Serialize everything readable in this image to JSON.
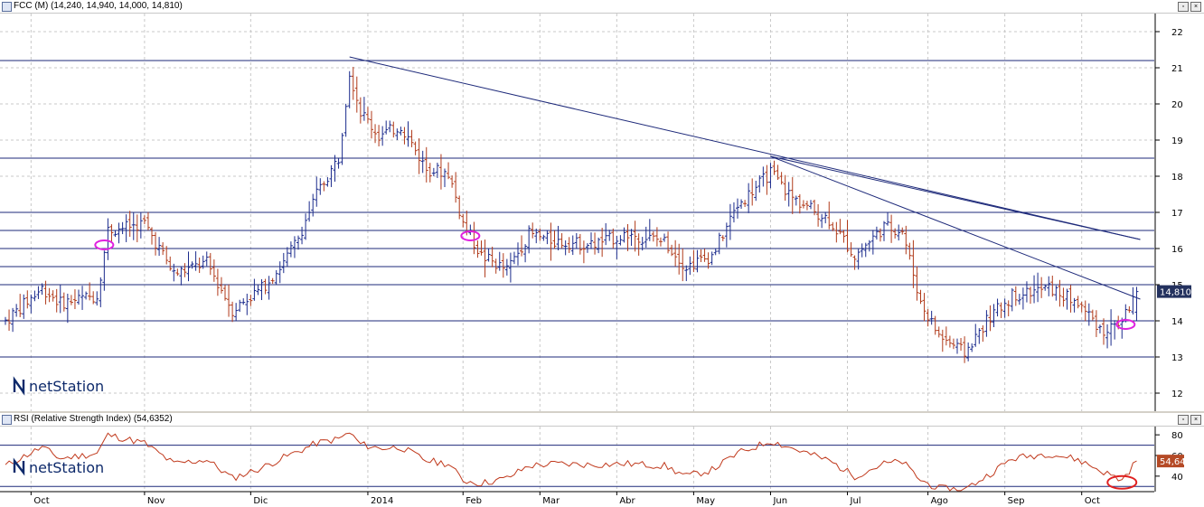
{
  "main_panel": {
    "title": "FCC (M) (14,240, 14,940, 14,000, 14,810)",
    "logo": "netStation",
    "last_value_label": "14,810"
  },
  "rsi_panel": {
    "title": "RSI (Relative Strength Index) (54,6352)",
    "logo": "netStation",
    "last_value_label": "54,64"
  },
  "window_buttons": {
    "restore": "▫",
    "close": "×"
  },
  "colors": {
    "up_bar": "#1a2a8c",
    "down_bar": "#b03a1a",
    "trendline": "#1e2a7a",
    "grid_dash": "#c8c8c8",
    "rsi_line": "#c0391c",
    "highlight_magenta": "#e020e0",
    "highlight_red": "#e02020",
    "value_badge_main": "#23315e",
    "value_badge_rsi": "#b54a26"
  },
  "chart_data": [
    {
      "type": "ohlc",
      "title": "FCC (M) (14,240, 14,940, 14,000, 14,810)",
      "ylim": [
        11.5,
        22.5
      ],
      "yticks": [
        12,
        13,
        14,
        15,
        16,
        17,
        18,
        19,
        20,
        21,
        22
      ],
      "x_months": [
        "Oct",
        "Nov",
        "Dic",
        "2014",
        "Feb",
        "Mar",
        "Abr",
        "May",
        "Jun",
        "Jul",
        "Ago",
        "Sep",
        "Oct"
      ],
      "month_start_index": [
        7,
        38,
        67,
        99,
        125,
        146,
        167,
        188,
        209,
        230,
        252,
        273,
        294
      ],
      "n_bars": 310,
      "waypoints": [
        [
          0,
          14.0
        ],
        [
          10,
          14.9
        ],
        [
          15,
          14.5
        ],
        [
          25,
          14.7
        ],
        [
          28,
          16.5
        ],
        [
          38,
          16.7
        ],
        [
          46,
          15.3
        ],
        [
          55,
          15.6
        ],
        [
          62,
          14.3
        ],
        [
          70,
          14.9
        ],
        [
          76,
          15.6
        ],
        [
          80,
          16.3
        ],
        [
          85,
          17.5
        ],
        [
          91,
          18.5
        ],
        [
          94,
          20.9
        ],
        [
          97,
          19.8
        ],
        [
          102,
          19.1
        ],
        [
          108,
          19.4
        ],
        [
          115,
          18.2
        ],
        [
          121,
          18.1
        ],
        [
          125,
          16.7
        ],
        [
          130,
          15.8
        ],
        [
          137,
          15.4
        ],
        [
          143,
          16.4
        ],
        [
          150,
          16.2
        ],
        [
          160,
          16.1
        ],
        [
          170,
          16.4
        ],
        [
          180,
          16.2
        ],
        [
          186,
          15.5
        ],
        [
          193,
          15.8
        ],
        [
          200,
          17.2
        ],
        [
          209,
          18.1
        ],
        [
          215,
          17.4
        ],
        [
          225,
          16.8
        ],
        [
          232,
          15.8
        ],
        [
          240,
          16.6
        ],
        [
          245,
          16.5
        ],
        [
          250,
          14.5
        ],
        [
          255,
          13.6
        ],
        [
          262,
          13.1
        ],
        [
          268,
          14.0
        ],
        [
          275,
          14.7
        ],
        [
          285,
          14.9
        ],
        [
          293,
          14.5
        ],
        [
          300,
          13.7
        ],
        [
          305,
          14.0
        ],
        [
          309,
          14.81
        ]
      ],
      "last": {
        "open": 14.24,
        "high": 14.94,
        "low": 14.0,
        "close": 14.81
      },
      "horizontal_lines": [
        13.0,
        14.0,
        15.0,
        15.5,
        16.0,
        16.5,
        17.0,
        18.5,
        21.2
      ],
      "trendlines": [
        {
          "from": [
            94,
            21.3
          ],
          "to": [
            310,
            16.25
          ]
        },
        {
          "from": [
            209,
            18.55
          ],
          "to": [
            310,
            16.25
          ]
        },
        {
          "from": [
            209,
            18.55
          ],
          "to": [
            310,
            14.6
          ]
        }
      ],
      "highlights": [
        {
          "index": 27,
          "value": 16.1,
          "color": "magenta"
        },
        {
          "index": 127,
          "value": 16.35,
          "color": "magenta"
        },
        {
          "index": 306,
          "value": 13.9,
          "color": "magenta"
        }
      ]
    },
    {
      "type": "line",
      "title": "RSI (Relative Strength Index) (54,6352)",
      "ylim": [
        25,
        88
      ],
      "yticks": [
        40,
        60,
        80
      ],
      "reference_lines": [
        30,
        70
      ],
      "last_value": 54.64,
      "waypoints": [
        [
          0,
          50
        ],
        [
          10,
          68
        ],
        [
          15,
          57
        ],
        [
          25,
          62
        ],
        [
          28,
          80
        ],
        [
          38,
          72
        ],
        [
          46,
          52
        ],
        [
          55,
          56
        ],
        [
          62,
          38
        ],
        [
          70,
          48
        ],
        [
          76,
          58
        ],
        [
          80,
          64
        ],
        [
          85,
          72
        ],
        [
          91,
          76
        ],
        [
          94,
          82
        ],
        [
          97,
          71
        ],
        [
          102,
          67
        ],
        [
          108,
          68
        ],
        [
          115,
          55
        ],
        [
          121,
          52
        ],
        [
          125,
          36
        ],
        [
          130,
          33
        ],
        [
          137,
          38
        ],
        [
          143,
          50
        ],
        [
          150,
          52
        ],
        [
          160,
          51
        ],
        [
          170,
          52
        ],
        [
          180,
          50
        ],
        [
          186,
          40
        ],
        [
          193,
          46
        ],
        [
          200,
          62
        ],
        [
          209,
          74
        ],
        [
          215,
          67
        ],
        [
          225,
          55
        ],
        [
          232,
          40
        ],
        [
          240,
          52
        ],
        [
          245,
          54
        ],
        [
          250,
          36
        ],
        [
          255,
          28
        ],
        [
          262,
          27
        ],
        [
          268,
          40
        ],
        [
          275,
          57
        ],
        [
          285,
          62
        ],
        [
          293,
          56
        ],
        [
          300,
          44
        ],
        [
          305,
          36
        ],
        [
          309,
          54.64
        ]
      ],
      "highlights": [
        {
          "index": 305,
          "value": 34,
          "color": "red"
        }
      ]
    }
  ]
}
